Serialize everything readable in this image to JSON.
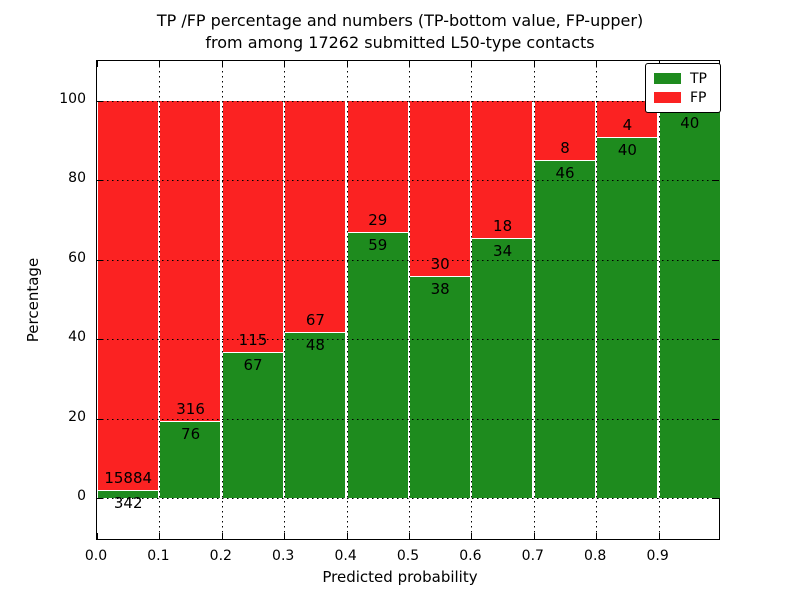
{
  "figure": {
    "title_line1": "TP /FP percentage and numbers (TP-bottom value, FP-upper)",
    "title_line2": "from among 17262 submitted L50-type contacts"
  },
  "chart_data": {
    "type": "bar",
    "stacked": true,
    "units": "percent",
    "title": "TP /FP percentage and numbers (TP-bottom value, FP-upper) from among 17262 submitted L50-type contacts",
    "xlabel": "Predicted probability",
    "ylabel": "Percentage",
    "x_tick_labels": [
      "0.0",
      "0.1",
      "0.2",
      "0.3",
      "0.4",
      "0.5",
      "0.6",
      "0.7",
      "0.8",
      "0.9"
    ],
    "y_tick_values": [
      0,
      20,
      40,
      60,
      80,
      100
    ],
    "xlim": [
      0.0,
      1.0
    ],
    "ylim": [
      -11,
      110
    ],
    "grid": "dotted-both-axes",
    "colors": {
      "tp": "#1e8b1e",
      "fp": "#fb2222"
    },
    "legend": {
      "position": "upper-right",
      "entries": [
        {
          "label": "TP",
          "color": "#1e8b1e"
        },
        {
          "label": "FP",
          "color": "#fb2222"
        }
      ]
    },
    "bins": [
      {
        "x_start": "0.0",
        "tp_count_label": "342",
        "fp_count_label": "15884",
        "tp_percent": 2.1,
        "fp_percent": 97.9
      },
      {
        "x_start": "0.1",
        "tp_count_label": "76",
        "fp_count_label": "316",
        "tp_percent": 19.4,
        "fp_percent": 80.6
      },
      {
        "x_start": "0.2",
        "tp_count_label": "67",
        "fp_count_label": "115",
        "tp_percent": 36.8,
        "fp_percent": 63.2
      },
      {
        "x_start": "0.3",
        "tp_count_label": "48",
        "fp_count_label": "67",
        "tp_percent": 41.7,
        "fp_percent": 58.3
      },
      {
        "x_start": "0.4",
        "tp_count_label": "59",
        "fp_count_label": "29",
        "tp_percent": 67.0,
        "fp_percent": 33.0
      },
      {
        "x_start": "0.5",
        "tp_count_label": "38",
        "fp_count_label": "30",
        "tp_percent": 55.9,
        "fp_percent": 44.1
      },
      {
        "x_start": "0.6",
        "tp_count_label": "34",
        "fp_count_label": "18",
        "tp_percent": 65.4,
        "fp_percent": 34.6
      },
      {
        "x_start": "0.7",
        "tp_count_label": "46",
        "fp_count_label": "8",
        "tp_percent": 85.2,
        "fp_percent": 14.8
      },
      {
        "x_start": "0.8",
        "tp_count_label": "40",
        "fp_count_label": "4",
        "tp_percent": 90.9,
        "fp_percent": 9.1
      },
      {
        "x_start": "0.9",
        "tp_count_label": "40",
        "fp_count_label": "",
        "tp_percent": 97.6,
        "fp_percent": 2.4
      }
    ]
  }
}
